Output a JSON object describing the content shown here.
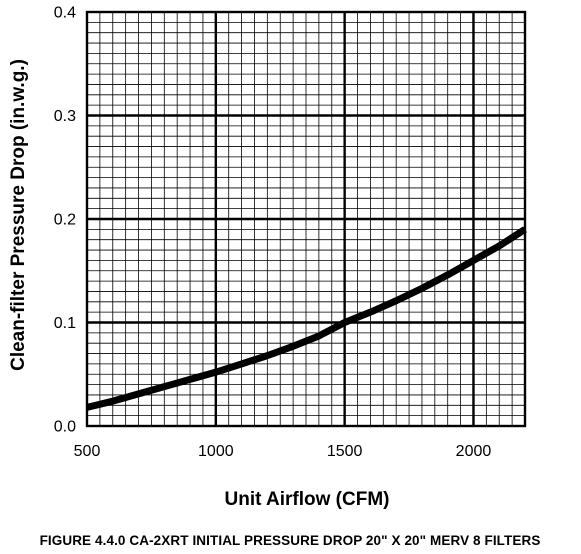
{
  "chart_data": {
    "type": "line",
    "title": "",
    "xlabel": "Unit Airflow (CFM)",
    "ylabel": "Clean-filter Pressure Drop (in.w.g.)",
    "xlim": [
      500,
      2200
    ],
    "ylim": [
      0,
      0.4
    ],
    "x_ticks": [
      500,
      1000,
      1500,
      2000
    ],
    "x_tick_labels": [
      "500",
      "1000",
      "1500",
      "2000"
    ],
    "y_ticks": [
      0.0,
      0.1,
      0.2,
      0.3,
      0.4
    ],
    "y_tick_labels": [
      "0.0",
      "0.1",
      "0.2",
      "0.3",
      "0.4"
    ],
    "grid": true,
    "legend": "none",
    "series": [
      {
        "x": [
          500,
          600,
          700,
          800,
          900,
          1000,
          1100,
          1200,
          1300,
          1400,
          1500,
          1600,
          1700,
          1800,
          1900,
          2000,
          2100,
          2200
        ],
        "y": [
          0.018,
          0.024,
          0.031,
          0.038,
          0.045,
          0.052,
          0.06,
          0.068,
          0.077,
          0.087,
          0.1,
          0.11,
          0.121,
          0.133,
          0.146,
          0.16,
          0.174,
          0.19
        ],
        "color": "#000000"
      }
    ]
  },
  "caption": "FIGURE 4.4.0 CA-2XRT INITIAL PRESSURE DROP 20\" X 20\" MERV 8 FILTERS"
}
